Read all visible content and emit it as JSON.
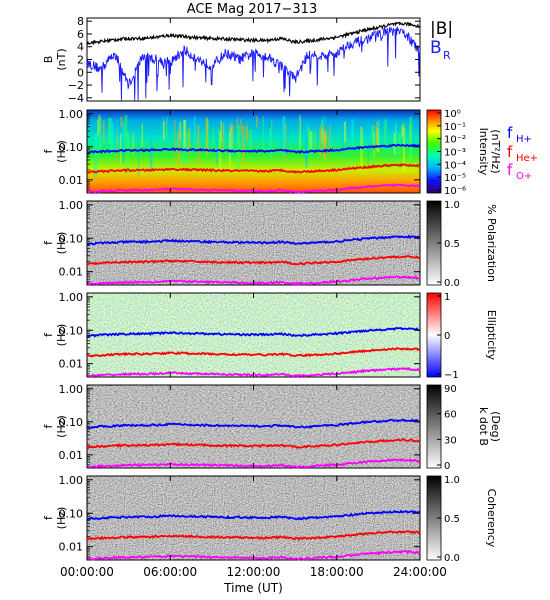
{
  "title": "ACE Mag 2017−313",
  "colors": {
    "bmag": "#000000",
    "br": "#1a1aff",
    "h_plus": "#0000ff",
    "he_plus": "#ff0000",
    "o_plus": "#ff00ff"
  },
  "chart_data": [
    {
      "type": "line",
      "panel": "magnetic-field",
      "ylabel": [
        "B",
        "(nT)"
      ],
      "ylim": [
        -4.5,
        8.5
      ],
      "yticks": [
        "8",
        "6",
        "4",
        "2",
        "0",
        "−2",
        "−4"
      ],
      "ytick_values": [
        8,
        6,
        4,
        2,
        0,
        -2,
        -4
      ],
      "xlim": [
        0,
        24
      ],
      "series": [
        {
          "name": "|B|",
          "color": "#000000",
          "x": [
            0,
            1,
            2,
            3,
            4,
            5,
            6,
            7,
            8,
            9,
            10,
            11,
            12,
            13,
            14,
            15,
            16,
            17,
            18,
            19,
            20,
            21,
            22,
            23,
            24
          ],
          "values": [
            4.6,
            4.8,
            5.1,
            5.3,
            5.3,
            5.5,
            5.8,
            5.6,
            5.4,
            5.3,
            5.2,
            5.1,
            5.0,
            5.0,
            5.3,
            4.7,
            4.9,
            5.2,
            5.5,
            6.0,
            6.6,
            7.0,
            7.5,
            7.6,
            7.2
          ]
        },
        {
          "name": "B",
          "sub": "R",
          "color": "#1a1aff",
          "x": [
            0,
            1,
            2,
            3,
            4,
            5,
            6,
            7,
            8,
            9,
            10,
            11,
            12,
            13,
            14,
            15,
            16,
            17,
            18,
            19,
            20,
            21,
            22,
            23,
            24
          ],
          "values": [
            1.5,
            0.5,
            3.0,
            -2.0,
            2.5,
            2.0,
            1.5,
            3.5,
            2.0,
            1.0,
            3.0,
            2.0,
            3.0,
            2.5,
            1.0,
            -1.0,
            3.0,
            2.5,
            3.0,
            4.5,
            5.0,
            6.0,
            6.5,
            6.0,
            3.0
          ]
        }
      ]
    },
    {
      "type": "heatmap",
      "panel": "intensity",
      "ylabel": [
        "f",
        "(Hz)"
      ],
      "colorbar_label": [
        "Intensity",
        "(nT²/Hz)"
      ],
      "colorbar_ticks": [
        "10⁰",
        "10⁻¹",
        "10⁻²",
        "10⁻³",
        "10⁻⁴",
        "10⁻⁵",
        "10⁻⁶"
      ],
      "colormap": "rainbow"
    },
    {
      "type": "heatmap",
      "panel": "polarization",
      "ylabel": [
        "f",
        "(Hz)"
      ],
      "colorbar_label": [
        "% Polarization"
      ],
      "colorbar_ticks": [
        "1.0",
        "0.5",
        "0.0"
      ],
      "colormap": "gray"
    },
    {
      "type": "heatmap",
      "panel": "ellipticity",
      "ylabel": [
        "f",
        "(Hz)"
      ],
      "colorbar_label": [
        "Ellipticity"
      ],
      "colorbar_ticks": [
        "1",
        "0",
        "−1"
      ],
      "colormap": "blue-white-red"
    },
    {
      "type": "heatmap",
      "panel": "k-dot-b",
      "ylabel": [
        "f",
        "(Hz)"
      ],
      "colorbar_label": [
        "k dot B",
        "(Deg)"
      ],
      "colorbar_ticks": [
        "90",
        "60",
        "30",
        "0"
      ],
      "colormap": "gray"
    },
    {
      "type": "heatmap",
      "panel": "coherency",
      "ylabel": [
        "f",
        "(Hz)"
      ],
      "colorbar_label": [
        "Coherency"
      ],
      "colorbar_ticks": [
        "1.0",
        "0.5",
        "0.0"
      ],
      "colormap": "gray"
    }
  ],
  "freq_axis": {
    "ytick_labels": [
      "1.00",
      "0.10",
      "0.01"
    ],
    "ytick_values": [
      1.0,
      0.1,
      0.01
    ],
    "ylim": [
      0.004,
      1.3
    ],
    "scale": "log"
  },
  "gyro_lines": {
    "x": [
      0,
      1,
      2,
      3,
      4,
      5,
      6,
      7,
      8,
      9,
      10,
      11,
      12,
      13,
      14,
      15,
      16,
      17,
      18,
      19,
      20,
      21,
      22,
      23,
      24
    ],
    "H+": [
      0.068,
      0.072,
      0.075,
      0.078,
      0.078,
      0.08,
      0.085,
      0.082,
      0.08,
      0.078,
      0.076,
      0.075,
      0.074,
      0.074,
      0.078,
      0.069,
      0.072,
      0.076,
      0.08,
      0.088,
      0.097,
      0.103,
      0.11,
      0.112,
      0.106
    ],
    "He+": [
      0.017,
      0.018,
      0.019,
      0.0195,
      0.0195,
      0.02,
      0.021,
      0.0205,
      0.02,
      0.0195,
      0.019,
      0.0188,
      0.0185,
      0.0185,
      0.0195,
      0.0173,
      0.018,
      0.019,
      0.02,
      0.022,
      0.024,
      0.026,
      0.0275,
      0.028,
      0.0265
    ],
    "O+": [
      0.0043,
      0.0045,
      0.0047,
      0.0049,
      0.0049,
      0.005,
      0.0053,
      0.0051,
      0.005,
      0.0049,
      0.0048,
      0.0047,
      0.0046,
      0.0046,
      0.0049,
      0.0043,
      0.0045,
      0.0048,
      0.005,
      0.0055,
      0.0061,
      0.0064,
      0.0069,
      0.007,
      0.0066
    ]
  },
  "legend": {
    "bmag": "|B|",
    "br_main": "B",
    "br_sub": "R",
    "h_main": "f",
    "h_sub": "H+",
    "he_main": "f",
    "he_sub": "He+",
    "o_main": "f",
    "o_sub": "O+"
  },
  "xaxis": {
    "label": "Time (UT)",
    "ticks": [
      "00:00:00",
      "06:00:00",
      "12:00:00",
      "18:00:00",
      "24:00:00"
    ],
    "tick_values": [
      0,
      6,
      12,
      18,
      24
    ],
    "range": [
      0,
      24
    ]
  }
}
